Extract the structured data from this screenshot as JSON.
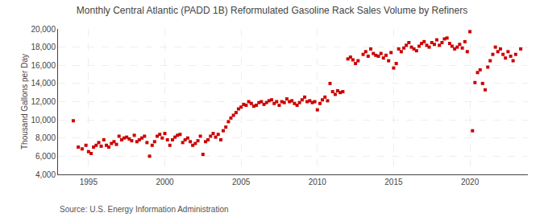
{
  "chart_data": {
    "type": "scatter",
    "title": "Monthly Central Atlantic (PADD 1B) Reformulated Gasoline Rack Sales Volume by Refiners",
    "ylabel": "Thousand Gallons per Day",
    "annotations": [
      "Source: U.S. Energy Information Administration"
    ],
    "color": "#cc0000",
    "marker": "square",
    "grid": true,
    "xlim": [
      1993.0,
      2023.8
    ],
    "xticks": [
      1995,
      2000,
      2005,
      2010,
      2015,
      2020
    ],
    "ylim": [
      4000,
      20000
    ],
    "yticks": [
      {
        "value": 4000,
        "label": "4,000"
      },
      {
        "value": 6000,
        "label": "6,000"
      },
      {
        "value": 8000,
        "label": "8,000"
      },
      {
        "value": 10000,
        "label": "10,000"
      },
      {
        "value": 12000,
        "label": "12,000"
      },
      {
        "value": 14000,
        "label": "14,000"
      },
      {
        "value": 16000,
        "label": "16,000"
      },
      {
        "value": 18000,
        "label": "18,000"
      },
      {
        "value": 20000,
        "label": "20,000"
      }
    ],
    "x": [
      1994.0,
      1994.33,
      1994.58,
      1994.83,
      1995.0,
      1995.17,
      1995.33,
      1995.5,
      1995.67,
      1995.83,
      1996.0,
      1996.17,
      1996.33,
      1996.5,
      1996.67,
      1996.83,
      1997.0,
      1997.17,
      1997.33,
      1997.5,
      1997.67,
      1997.83,
      1998.0,
      1998.17,
      1998.33,
      1998.5,
      1998.67,
      1998.83,
      1999.0,
      1999.17,
      1999.33,
      1999.5,
      1999.67,
      1999.83,
      2000.0,
      2000.17,
      2000.33,
      2000.5,
      2000.67,
      2000.83,
      2001.0,
      2001.17,
      2001.33,
      2001.5,
      2001.67,
      2001.83,
      2002.0,
      2002.17,
      2002.33,
      2002.5,
      2002.67,
      2002.83,
      2003.0,
      2003.17,
      2003.33,
      2003.5,
      2003.67,
      2003.83,
      2004.0,
      2004.17,
      2004.33,
      2004.5,
      2004.67,
      2004.83,
      2005.0,
      2005.17,
      2005.33,
      2005.5,
      2005.67,
      2005.83,
      2006.0,
      2006.17,
      2006.33,
      2006.5,
      2006.67,
      2006.83,
      2007.0,
      2007.17,
      2007.33,
      2007.5,
      2007.67,
      2007.83,
      2008.0,
      2008.17,
      2008.33,
      2008.5,
      2008.67,
      2008.83,
      2009.0,
      2009.17,
      2009.33,
      2009.5,
      2009.67,
      2009.83,
      2010.0,
      2010.17,
      2010.33,
      2010.5,
      2010.67,
      2010.83,
      2011.0,
      2011.17,
      2011.33,
      2011.5,
      2011.67,
      2012.0,
      2012.17,
      2012.33,
      2012.5,
      2012.67,
      2013.0,
      2013.17,
      2013.33,
      2013.5,
      2013.67,
      2013.83,
      2014.0,
      2014.17,
      2014.33,
      2014.5,
      2014.67,
      2014.83,
      2015.0,
      2015.17,
      2015.33,
      2015.5,
      2015.67,
      2015.83,
      2016.0,
      2016.17,
      2016.33,
      2016.5,
      2016.67,
      2016.83,
      2017.0,
      2017.17,
      2017.33,
      2017.5,
      2017.67,
      2017.83,
      2018.0,
      2018.17,
      2018.33,
      2018.5,
      2018.67,
      2018.83,
      2019.0,
      2019.17,
      2019.33,
      2019.5,
      2019.67,
      2019.83,
      2020.0,
      2020.17,
      2020.33,
      2020.5,
      2020.67,
      2020.83,
      2021.0,
      2021.17,
      2021.33,
      2021.5,
      2021.67,
      2021.83,
      2022.0,
      2022.17,
      2022.33,
      2022.5,
      2022.67,
      2022.83,
      2023.0,
      2023.33
    ],
    "values": [
      9900,
      7000,
      6800,
      7200,
      6500,
      6300,
      7000,
      7200,
      7500,
      7100,
      7800,
      7200,
      7000,
      7400,
      7600,
      7300,
      8200,
      7800,
      8000,
      8100,
      7900,
      7700,
      8300,
      7600,
      7800,
      8000,
      8200,
      7500,
      6000,
      7200,
      7600,
      8200,
      8400,
      8000,
      8500,
      7800,
      7200,
      7800,
      8100,
      8300,
      8400,
      7500,
      7800,
      8000,
      7600,
      7200,
      7400,
      7700,
      8200,
      6200,
      7600,
      7800,
      8200,
      8500,
      8100,
      8400,
      7800,
      8800,
      9200,
      9800,
      10200,
      10500,
      10800,
      11200,
      11400,
      11700,
      11600,
      12000,
      11800,
      11500,
      11600,
      11900,
      12000,
      11700,
      11900,
      12100,
      12200,
      11800,
      12000,
      11600,
      12000,
      11900,
      12300,
      12000,
      12100,
      11800,
      11600,
      11900,
      12200,
      12500,
      12000,
      12100,
      11900,
      12000,
      11100,
      11800,
      12200,
      12500,
      12100,
      14000,
      13100,
      12800,
      13200,
      13000,
      13100,
      16700,
      16900,
      16600,
      16200,
      16500,
      17200,
      17500,
      17000,
      17800,
      17300,
      17100,
      17000,
      17300,
      16800,
      17100,
      16500,
      17400,
      15700,
      16200,
      17800,
      17500,
      17900,
      18200,
      18500,
      18000,
      17800,
      17600,
      18100,
      18400,
      18600,
      18200,
      18000,
      18500,
      18300,
      18800,
      18200,
      18500,
      18900,
      19000,
      18400,
      18100,
      17800,
      18000,
      18300,
      17900,
      18600,
      17500,
      19700,
      8800,
      14100,
      15200,
      15500,
      14000,
      13300,
      15800,
      16500,
      17200,
      18000,
      17500,
      17800,
      17200,
      16800,
      17500,
      17000,
      16500,
      17200,
      17800
    ]
  }
}
